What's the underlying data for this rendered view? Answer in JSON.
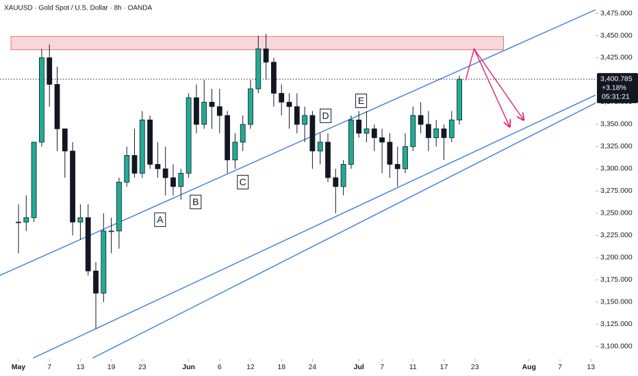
{
  "chart_data": {
    "type": "candlestick",
    "title": "XAUUSD · Gold Spot / U.S. Dollar · 8h · OANDA",
    "up_color": "#22ab94",
    "down_color": "#131722",
    "open": [
      3240,
      3240,
      3245,
      3330,
      3425,
      3395,
      3345,
      3320,
      3240,
      3245,
      3185,
      3160,
      3230,
      3230,
      3285,
      3315,
      3295,
      3355,
      3305,
      3300,
      3290,
      3280,
      3295,
      3380,
      3350,
      3375,
      3370,
      3360,
      3310,
      3330,
      3350,
      3390,
      3435,
      3420,
      3385,
      3375,
      3370,
      3350,
      3360,
      3320,
      3330,
      3290,
      3280,
      3305,
      3355,
      3340,
      3345,
      3335,
      3330,
      3305,
      3300,
      3325,
      3360,
      3350,
      3335,
      3345,
      3335,
      3355
    ],
    "high": [
      3260,
      3270,
      3330,
      3435,
      3440,
      3415,
      3345,
      3330,
      3260,
      3260,
      3195,
      3250,
      3245,
      3290,
      3325,
      3345,
      3365,
      3360,
      3330,
      3325,
      3305,
      3300,
      3385,
      3395,
      3400,
      3390,
      3390,
      3365,
      3340,
      3360,
      3400,
      3450,
      3452,
      3425,
      3395,
      3385,
      3385,
      3370,
      3365,
      3340,
      3340,
      3300,
      3310,
      3360,
      3365,
      3365,
      3350,
      3345,
      3340,
      3325,
      3340,
      3370,
      3375,
      3365,
      3355,
      3350,
      3365,
      3405
    ],
    "low": [
      3205,
      3230,
      3240,
      3325,
      3370,
      3320,
      3290,
      3225,
      3220,
      3180,
      3120,
      3150,
      3205,
      3210,
      3280,
      3290,
      3290,
      3300,
      3290,
      3270,
      3270,
      3265,
      3290,
      3340,
      3345,
      3345,
      3340,
      3295,
      3300,
      3320,
      3345,
      3385,
      3400,
      3370,
      3360,
      3345,
      3340,
      3330,
      3300,
      3305,
      3285,
      3250,
      3270,
      3300,
      3335,
      3330,
      3320,
      3295,
      3290,
      3280,
      3295,
      3320,
      3340,
      3320,
      3325,
      3310,
      3330,
      3350
    ],
    "close": [
      3240,
      3245,
      3330,
      3425,
      3395,
      3345,
      3320,
      3240,
      3245,
      3185,
      3160,
      3230,
      3230,
      3285,
      3315,
      3295,
      3355,
      3305,
      3300,
      3290,
      3280,
      3295,
      3380,
      3350,
      3375,
      3370,
      3360,
      3310,
      3330,
      3350,
      3390,
      3435,
      3420,
      3385,
      3375,
      3370,
      3350,
      3360,
      3320,
      3330,
      3290,
      3280,
      3305,
      3355,
      3340,
      3345,
      3335,
      3330,
      3305,
      3300,
      3325,
      3360,
      3350,
      3335,
      3345,
      3335,
      3355,
      3400.785
    ],
    "xlim": [
      -2.39,
      74.6
    ],
    "xticks": [
      {
        "value": 0,
        "label": "May"
      },
      {
        "value": 4,
        "label": "7"
      },
      {
        "value": 8,
        "label": "13"
      },
      {
        "value": 12,
        "label": "19"
      },
      {
        "value": 16,
        "label": "23"
      },
      {
        "value": 22,
        "label": "Jun"
      },
      {
        "value": 26,
        "label": "6"
      },
      {
        "value": 30,
        "label": "12"
      },
      {
        "value": 34,
        "label": "18"
      },
      {
        "value": 38,
        "label": "24"
      },
      {
        "value": 44,
        "label": "Jul"
      },
      {
        "value": 47,
        "label": "7"
      },
      {
        "value": 51,
        "label": "11"
      },
      {
        "value": 55,
        "label": "17"
      },
      {
        "value": 59,
        "label": "23"
      },
      {
        "value": 66,
        "label": "Aug"
      },
      {
        "value": 70,
        "label": "7"
      },
      {
        "value": 74,
        "label": "13"
      }
    ],
    "ylim": [
      3086,
      3490
    ],
    "yticks": [
      {
        "value": 3100,
        "label": "3,100.000"
      },
      {
        "value": 3125,
        "label": "3,125.000"
      },
      {
        "value": 3150,
        "label": "3,150.000"
      },
      {
        "value": 3175,
        "label": "3,175.000"
      },
      {
        "value": 3200,
        "label": "3,200.000"
      },
      {
        "value": 3225,
        "label": "3,225.000"
      },
      {
        "value": 3250,
        "label": "3,250.000"
      },
      {
        "value": 3275,
        "label": "3,275.000"
      },
      {
        "value": 3300,
        "label": "3,300.000"
      },
      {
        "value": 3325,
        "label": "3,325.000"
      },
      {
        "value": 3350,
        "label": "3,350.000"
      },
      {
        "value": 3375,
        "label": "3,375.000"
      },
      {
        "value": 3425,
        "label": "3,425.000"
      },
      {
        "value": 3450,
        "label": "3,450.000"
      },
      {
        "value": 3475,
        "label": "3,475.000"
      }
    ],
    "last_price": {
      "value": 3400.785,
      "label": "3,400.785"
    },
    "change": "+3.18%",
    "countdown": "05:31:21",
    "zone": {
      "x": [
        -0.97,
        62.7
      ],
      "y": [
        3434,
        3449
      ],
      "fill": "#f8d7da",
      "stroke": "#e57373"
    },
    "trendline_color": "#3c7be0",
    "trendlines": [
      [
        [
          -2.4,
          3180
        ],
        [
          74.6,
          3479
        ]
      ],
      [
        [
          1.9,
          3087
        ],
        [
          74.6,
          3383
        ]
      ],
      [
        [
          9.6,
          3087
        ],
        [
          74.6,
          3374
        ]
      ]
    ],
    "projection_color": "#e91e63",
    "projections": [
      [
        [
          57.8,
          3399.6
        ],
        [
          58.9,
          3435
        ],
        [
          63.5,
          3347.3
        ]
      ],
      [
        [
          58.9,
          3435
        ],
        [
          65.3,
          3355
        ]
      ]
    ],
    "labels": [
      {
        "text": "A",
        "at": [
          18.3,
          3242.7
        ]
      },
      {
        "text": "B",
        "at": [
          22.9,
          3262.7
        ]
      },
      {
        "text": "C",
        "at": [
          29,
          3285
        ]
      },
      {
        "text": "D",
        "at": [
          39.7,
          3359.6
        ]
      },
      {
        "text": "E",
        "at": [
          44.3,
          3376.5
        ]
      }
    ]
  }
}
